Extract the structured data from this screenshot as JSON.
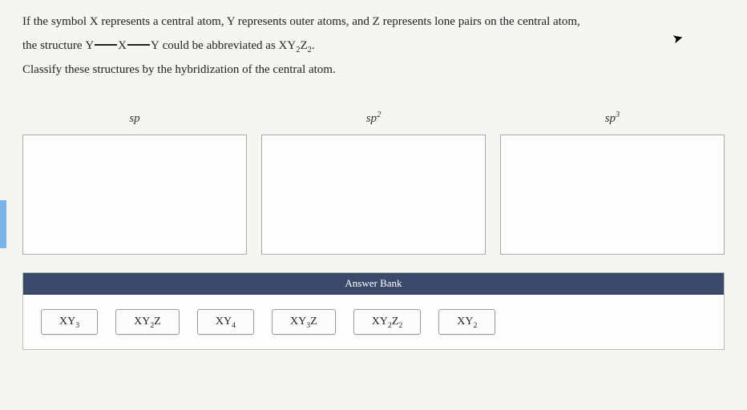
{
  "instructions": {
    "line1": "If the symbol X represents a central atom, Y represents outer atoms, and Z represents lone pairs on the central atom,",
    "line2_prefix": "the structure ",
    "line2_y1": "Y",
    "line2_x": "X",
    "line2_y2": "Y",
    "line2_mid": " could be abbreviated as ",
    "line2_formula_base": "XY",
    "line2_formula_sub1": "2",
    "line2_formula_z": "Z",
    "line2_formula_sub2": "2",
    "line2_end": ".",
    "line3": "Classify these structures by the hybridization of the central atom."
  },
  "dropzones": [
    {
      "label_base": "sp",
      "label_sup": ""
    },
    {
      "label_base": "sp",
      "label_sup": "2"
    },
    {
      "label_base": "sp",
      "label_sup": "3"
    }
  ],
  "answer_bank": {
    "header": "Answer Bank",
    "items": [
      {
        "base": "XY",
        "sub1": "3",
        "z": "",
        "sub2": ""
      },
      {
        "base": "XY",
        "sub1": "2",
        "z": "Z",
        "sub2": ""
      },
      {
        "base": "XY",
        "sub1": "4",
        "z": "",
        "sub2": ""
      },
      {
        "base": "XY",
        "sub1": "3",
        "z": "Z",
        "sub2": ""
      },
      {
        "base": "XY",
        "sub1": "2",
        "z": "Z",
        "sub2": "2"
      },
      {
        "base": "XY",
        "sub1": "2",
        "z": "",
        "sub2": ""
      }
    ]
  },
  "colors": {
    "bank_header_bg": "#3a4a6b",
    "page_bg": "#f5f5f2",
    "box_border": "#aaaaaa"
  }
}
